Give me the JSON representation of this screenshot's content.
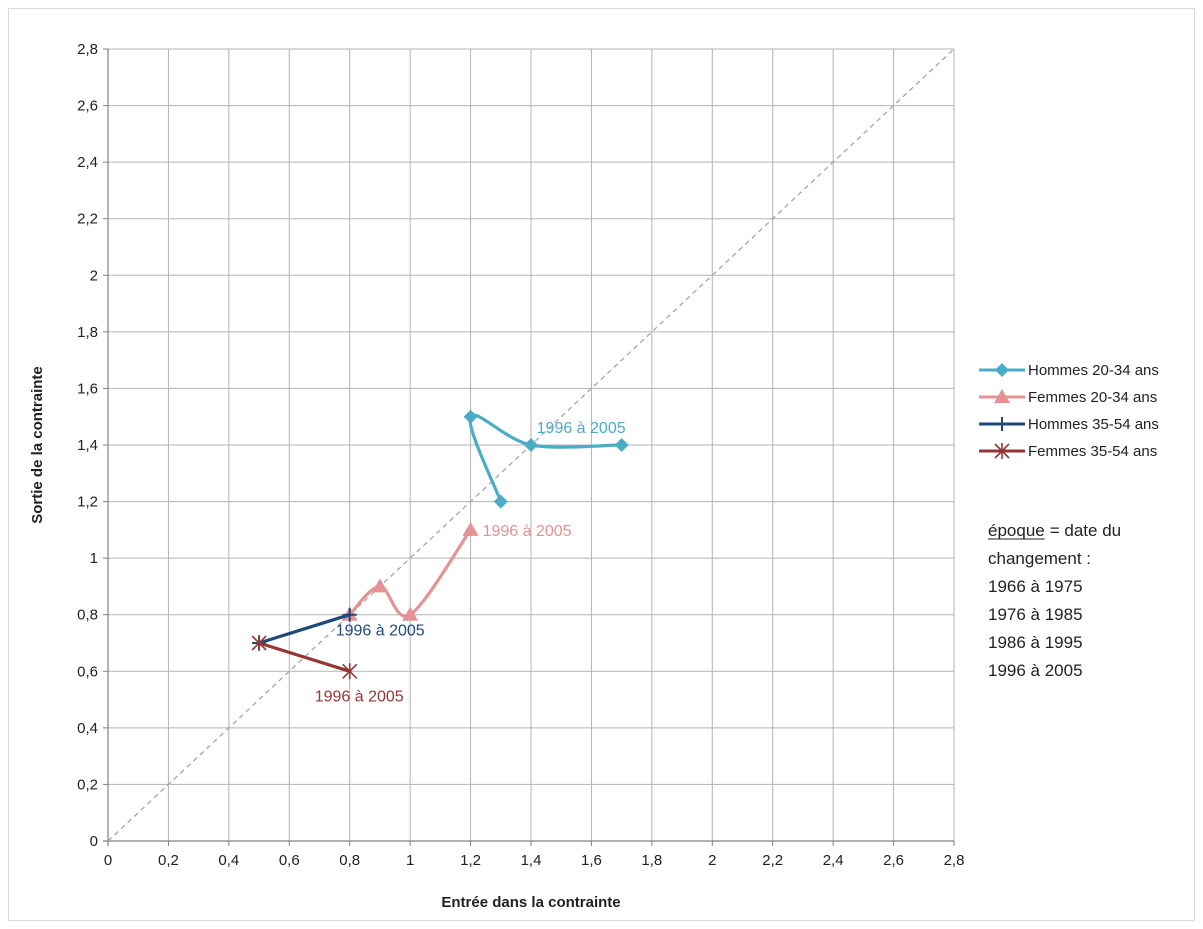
{
  "chart_data": {
    "type": "line",
    "title": "",
    "xlabel": "Entrée dans la contrainte",
    "ylabel": "Sortie de la contrainte",
    "xlim": [
      0,
      2.8
    ],
    "ylim": [
      0,
      2.8
    ],
    "x_ticks": [
      "0",
      "0,2",
      "0,4",
      "0,6",
      "0,8",
      "1",
      "1,2",
      "1,4",
      "1,6",
      "1,8",
      "2",
      "2,2",
      "2,4",
      "2,6",
      "2,8"
    ],
    "y_ticks": [
      "0",
      "0,2",
      "0,4",
      "0,6",
      "0,8",
      "1",
      "1,2",
      "1,4",
      "1,6",
      "1,8",
      "2",
      "2,2",
      "2,4",
      "2,6",
      "2,8"
    ],
    "grid": true,
    "diagonal_reference": true,
    "legend_position": "right",
    "series": [
      {
        "name": "Hommes 20-34 ans",
        "color": "#4bacc6",
        "marker": "diamond",
        "points": [
          [
            1.3,
            1.2
          ],
          [
            1.2,
            1.5
          ],
          [
            1.4,
            1.4
          ],
          [
            1.7,
            1.4
          ]
        ],
        "end_label": "1996 à 2005"
      },
      {
        "name": "Femmes 20-34 ans",
        "color": "#e39393",
        "marker": "triangle",
        "points": [
          [
            0.8,
            0.8
          ],
          [
            0.9,
            0.9
          ],
          [
            1.0,
            0.8
          ],
          [
            1.2,
            1.1
          ]
        ],
        "end_label": "1996 à 2005"
      },
      {
        "name": "Hommes 35-54 ans",
        "color": "#1f497d",
        "marker": "plus",
        "points": [
          [
            0.5,
            0.7
          ],
          [
            0.8,
            0.8
          ]
        ],
        "end_label": "1996 à 2005"
      },
      {
        "name": "Femmes 35-54 ans",
        "color": "#953735",
        "marker": "star",
        "points": [
          [
            0.5,
            0.7
          ],
          [
            0.8,
            0.6
          ]
        ],
        "end_label": "1996 à 2005"
      }
    ],
    "note": {
      "term": "époque",
      "definition_line1": "= date du",
      "definition_line2": "changement :",
      "periods": [
        "1966 à 1975",
        "1976 à 1985",
        "1986 à 1995",
        "1996 à 2005"
      ]
    }
  }
}
